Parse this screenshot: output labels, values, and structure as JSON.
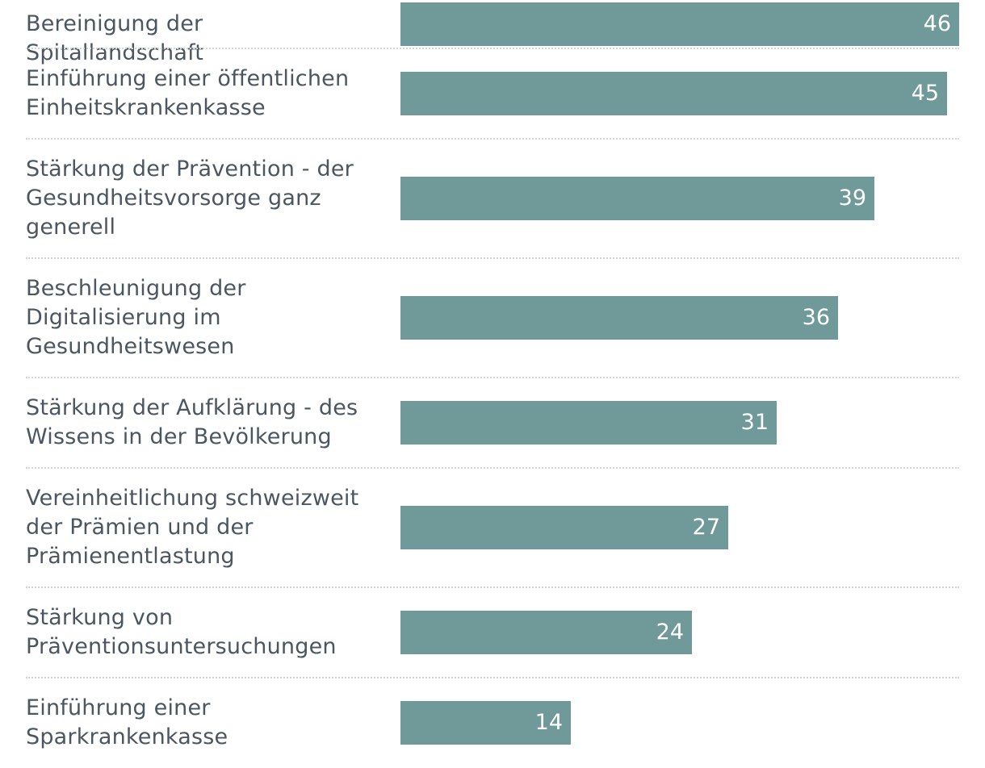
{
  "chart_data": {
    "type": "bar",
    "orientation": "horizontal",
    "title": "",
    "xlabel": "",
    "ylabel": "",
    "xlim": [
      0,
      46
    ],
    "categories": [
      [
        "Bereinigung der Spitallandschaft"
      ],
      [
        "Einführung einer öffentlichen",
        "Einheitskrankenkasse"
      ],
      [
        "Stärkung der Prävention - der",
        "Gesundheitsvorsorge ganz",
        "generell"
      ],
      [
        "Beschleunigung der",
        "Digitalisierung im",
        "Gesundheitswesen"
      ],
      [
        "Stärkung der Aufklärung - des",
        "Wissens in der Bevölkerung"
      ],
      [
        "Vereinheitlichung schweizweit",
        "der Prämien und der",
        "Prämienentlastung"
      ],
      [
        "Stärkung von",
        "Präventionsuntersuchungen"
      ],
      [
        "Einführung einer",
        "Sparkrankenkasse"
      ]
    ],
    "values": [
      46,
      45,
      39,
      36,
      31,
      27,
      24,
      14
    ],
    "colors": {
      "bar": "#6f9a99",
      "label_text": "#4a5660",
      "value_text": "#ffffff",
      "divider": "#d4d4d4"
    },
    "grid": false,
    "legend": "none"
  }
}
